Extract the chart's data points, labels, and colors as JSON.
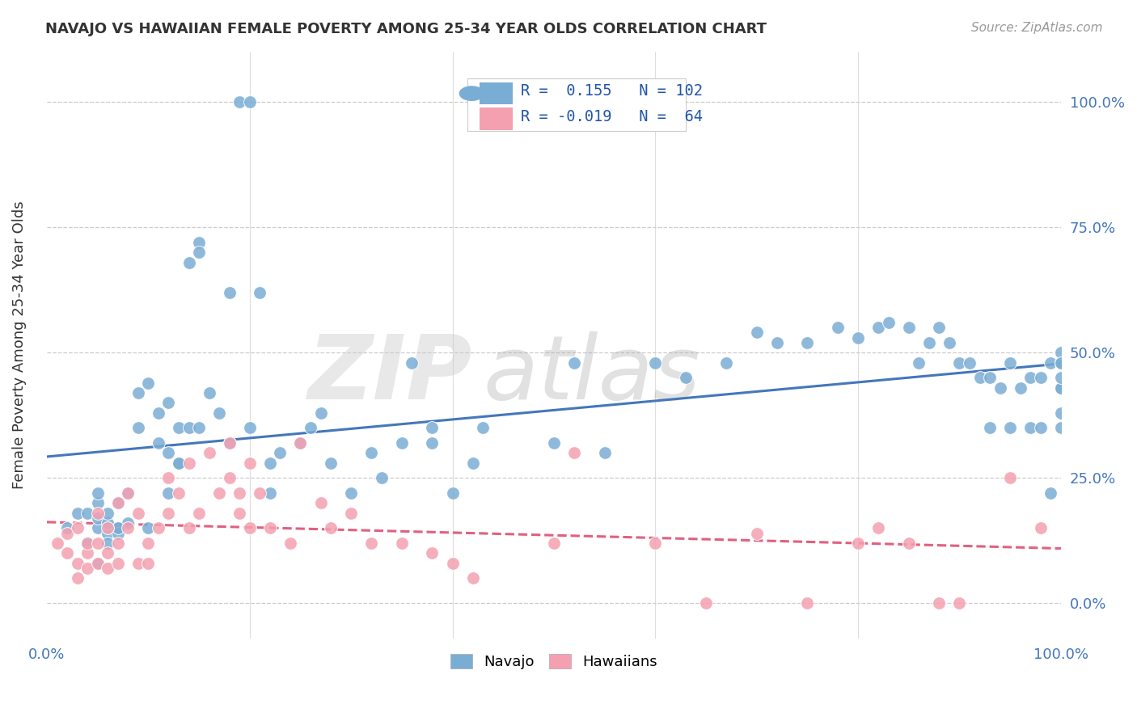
{
  "title": "NAVAJO VS HAWAIIAN FEMALE POVERTY AMONG 25-34 YEAR OLDS CORRELATION CHART",
  "source": "Source: ZipAtlas.com",
  "ylabel": "Female Poverty Among 25-34 Year Olds",
  "xlim": [
    0,
    1.0
  ],
  "ylim": [
    -0.07,
    1.1
  ],
  "navajo_color": "#7aadd4",
  "hawaiian_color": "#f4a0b0",
  "navajo_R": 0.155,
  "navajo_N": 102,
  "hawaiian_R": -0.019,
  "hawaiian_N": 64,
  "navajo_line_color": "#4477bb",
  "hawaiian_line_color": "#e06080",
  "background_color": "#ffffff",
  "watermark_zip": "ZIP",
  "watermark_atlas": "atlas",
  "navajo_points_x": [
    0.02,
    0.03,
    0.04,
    0.04,
    0.05,
    0.05,
    0.05,
    0.05,
    0.05,
    0.06,
    0.06,
    0.06,
    0.06,
    0.07,
    0.07,
    0.07,
    0.08,
    0.08,
    0.09,
    0.09,
    0.1,
    0.1,
    0.11,
    0.11,
    0.12,
    0.12,
    0.12,
    0.13,
    0.13,
    0.14,
    0.15,
    0.15,
    0.16,
    0.17,
    0.18,
    0.19,
    0.2,
    0.2,
    0.21,
    0.22,
    0.23,
    0.25,
    0.26,
    0.27,
    0.28,
    0.3,
    0.32,
    0.33,
    0.35,
    0.36,
    0.38,
    0.4,
    0.43,
    0.5,
    0.52,
    0.55,
    0.6,
    0.63,
    0.67,
    0.7,
    0.72,
    0.75,
    0.78,
    0.8,
    0.82,
    0.83,
    0.85,
    0.86,
    0.87,
    0.88,
    0.89,
    0.9,
    0.91,
    0.92,
    0.93,
    0.93,
    0.94,
    0.95,
    0.95,
    0.96,
    0.97,
    0.97,
    0.98,
    0.98,
    0.99,
    0.99,
    1.0,
    1.0,
    1.0,
    1.0,
    1.0,
    1.0,
    1.0,
    1.0,
    0.13,
    0.14,
    0.18,
    0.22,
    0.38,
    0.42,
    0.15,
    0.07
  ],
  "navajo_points_y": [
    0.15,
    0.18,
    0.12,
    0.18,
    0.15,
    0.2,
    0.22,
    0.17,
    0.08,
    0.14,
    0.16,
    0.18,
    0.12,
    0.15,
    0.2,
    0.14,
    0.16,
    0.22,
    0.35,
    0.42,
    0.44,
    0.15,
    0.38,
    0.32,
    0.4,
    0.3,
    0.22,
    0.35,
    0.28,
    0.68,
    0.72,
    0.7,
    0.42,
    0.38,
    0.62,
    1.0,
    1.0,
    0.35,
    0.62,
    0.28,
    0.3,
    0.32,
    0.35,
    0.38,
    0.28,
    0.22,
    0.3,
    0.25,
    0.32,
    0.48,
    0.32,
    0.22,
    0.35,
    0.32,
    0.48,
    0.3,
    0.48,
    0.45,
    0.48,
    0.54,
    0.52,
    0.52,
    0.55,
    0.53,
    0.55,
    0.56,
    0.55,
    0.48,
    0.52,
    0.55,
    0.52,
    0.48,
    0.48,
    0.45,
    0.45,
    0.35,
    0.43,
    0.35,
    0.48,
    0.43,
    0.45,
    0.35,
    0.45,
    0.35,
    0.48,
    0.22,
    0.48,
    0.5,
    0.43,
    0.48,
    0.43,
    0.45,
    0.38,
    0.35,
    0.28,
    0.35,
    0.32,
    0.22,
    0.35,
    0.28,
    0.35,
    0.15
  ],
  "hawaiian_points_x": [
    0.01,
    0.02,
    0.02,
    0.03,
    0.03,
    0.03,
    0.04,
    0.04,
    0.04,
    0.05,
    0.05,
    0.05,
    0.06,
    0.06,
    0.06,
    0.07,
    0.07,
    0.07,
    0.08,
    0.08,
    0.09,
    0.09,
    0.1,
    0.1,
    0.11,
    0.12,
    0.12,
    0.13,
    0.14,
    0.14,
    0.15,
    0.16,
    0.17,
    0.18,
    0.18,
    0.19,
    0.19,
    0.2,
    0.2,
    0.21,
    0.22,
    0.24,
    0.25,
    0.27,
    0.28,
    0.3,
    0.32,
    0.35,
    0.38,
    0.4,
    0.42,
    0.5,
    0.52,
    0.6,
    0.65,
    0.7,
    0.75,
    0.8,
    0.82,
    0.85,
    0.88,
    0.9,
    0.95,
    0.98
  ],
  "hawaiian_points_y": [
    0.12,
    0.1,
    0.14,
    0.08,
    0.15,
    0.05,
    0.1,
    0.12,
    0.07,
    0.08,
    0.12,
    0.18,
    0.07,
    0.1,
    0.15,
    0.08,
    0.12,
    0.2,
    0.15,
    0.22,
    0.18,
    0.08,
    0.12,
    0.08,
    0.15,
    0.18,
    0.25,
    0.22,
    0.28,
    0.15,
    0.18,
    0.3,
    0.22,
    0.25,
    0.32,
    0.22,
    0.18,
    0.28,
    0.15,
    0.22,
    0.15,
    0.12,
    0.32,
    0.2,
    0.15,
    0.18,
    0.12,
    0.12,
    0.1,
    0.08,
    0.05,
    0.12,
    0.3,
    0.12,
    0.0,
    0.14,
    0.0,
    0.12,
    0.15,
    0.12,
    0.0,
    0.0,
    0.25,
    0.15
  ]
}
